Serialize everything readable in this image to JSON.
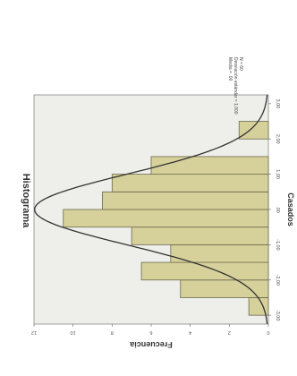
{
  "chart_data": {
    "type": "bar",
    "title": "Histograma",
    "xlabel": "Casados",
    "ylabel": "Frecuencia",
    "x_ticks": [
      "-3,00",
      "-2,00",
      "-1,00",
      ".00",
      "1,00",
      "2,00",
      "3,00"
    ],
    "y_ticks": [
      "0",
      "2",
      "4",
      "6",
      "8",
      "10",
      "12"
    ],
    "xlim": [
      -3.25,
      3.25
    ],
    "ylim": [
      0,
      12
    ],
    "bin_width": 0.5,
    "bins": [
      {
        "x": -2.75,
        "value": 1
      },
      {
        "x": -2.25,
        "value": 4.5
      },
      {
        "x": -1.75,
        "value": 6.5
      },
      {
        "x": -1.25,
        "value": 5
      },
      {
        "x": -0.75,
        "value": 7
      },
      {
        "x": -0.25,
        "value": 10.5
      },
      {
        "x": 0.25,
        "value": 8.5
      },
      {
        "x": 0.75,
        "value": 8
      },
      {
        "x": 1.25,
        "value": 6
      },
      {
        "x": 1.75,
        "value": 0
      },
      {
        "x": 2.25,
        "value": 1.5
      },
      {
        "x": 2.75,
        "value": 0
      }
    ],
    "normal_curve": {
      "mean": 0.0,
      "sd": 1.0,
      "n": 60
    },
    "stats_lines": [
      "Media = .00",
      "Desviación estándar = 1.000",
      "N = 60"
    ],
    "colors": {
      "bar_fill": "#d6d09a",
      "bar_stroke": "#6b6a4e",
      "plot_bg": "#eeeeea",
      "curve": "#333333"
    }
  }
}
